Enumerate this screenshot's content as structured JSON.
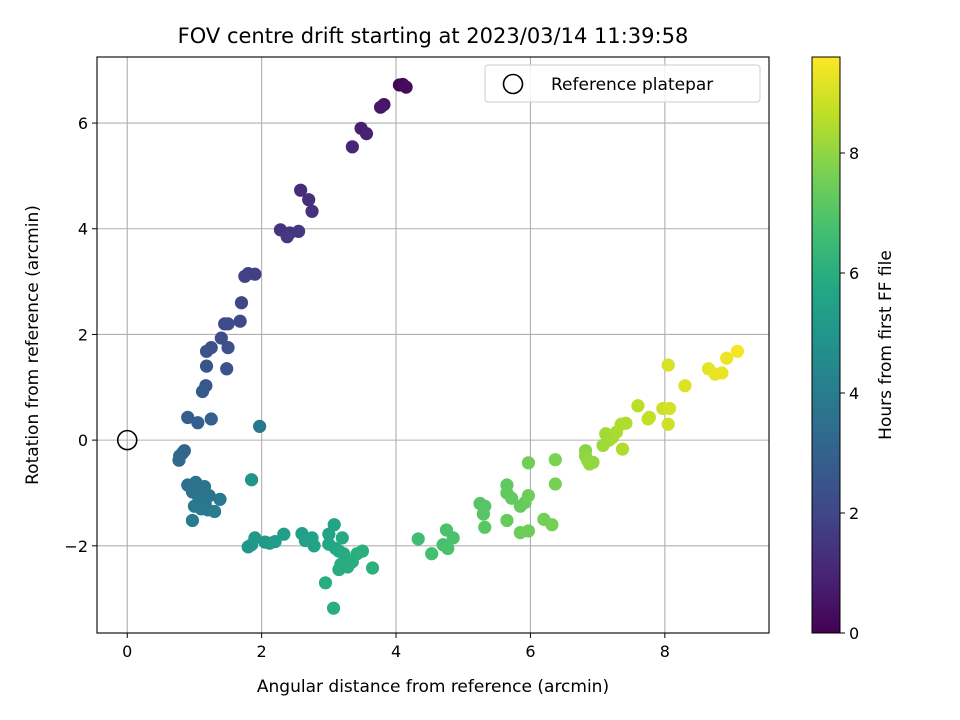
{
  "chart_data": {
    "type": "scatter",
    "title": "FOV centre drift starting at 2023/03/14 11:39:58",
    "xlabel": "Angular distance from reference (arcmin)",
    "ylabel": "Rotation from reference (arcmin)",
    "colorbar_label": "Hours from first FF file",
    "xlim": [
      -0.45,
      9.55
    ],
    "ylim": [
      -3.65,
      7.25
    ],
    "x_ticks": [
      0,
      2,
      4,
      6,
      8
    ],
    "y_ticks": [
      -2,
      0,
      2,
      4,
      6
    ],
    "x_tick_labels": [
      "0",
      "2",
      "4",
      "6",
      "8"
    ],
    "y_tick_labels": [
      "−2",
      "0",
      "2",
      "4",
      "6"
    ],
    "colorbar_range": [
      0,
      9.6
    ],
    "colorbar_ticks": [
      0,
      2,
      4,
      6,
      8
    ],
    "colorbar_tick_labels": [
      "0",
      "2",
      "4",
      "6",
      "8"
    ],
    "colormap": "viridis",
    "grid": true,
    "legend": {
      "position": "top-right",
      "entries": [
        "Reference platepar"
      ]
    },
    "reference_point": {
      "x": 0,
      "y": 0
    },
    "points": [
      {
        "x": 4.05,
        "y": 6.72,
        "t": 0.1
      },
      {
        "x": 4.1,
        "y": 6.73,
        "t": 0.2
      },
      {
        "x": 4.15,
        "y": 6.68,
        "t": 0.3
      },
      {
        "x": 3.82,
        "y": 6.35,
        "t": 0.5
      },
      {
        "x": 3.77,
        "y": 6.3,
        "t": 0.6
      },
      {
        "x": 3.48,
        "y": 5.9,
        "t": 0.8
      },
      {
        "x": 3.56,
        "y": 5.8,
        "t": 0.9
      },
      {
        "x": 3.35,
        "y": 5.55,
        "t": 1.0
      },
      {
        "x": 2.58,
        "y": 4.73,
        "t": 1.2
      },
      {
        "x": 2.7,
        "y": 4.55,
        "t": 1.3
      },
      {
        "x": 2.75,
        "y": 4.33,
        "t": 1.35
      },
      {
        "x": 2.28,
        "y": 3.98,
        "t": 1.45
      },
      {
        "x": 2.42,
        "y": 3.92,
        "t": 1.5
      },
      {
        "x": 2.38,
        "y": 3.85,
        "t": 1.55
      },
      {
        "x": 2.55,
        "y": 3.95,
        "t": 1.55
      },
      {
        "x": 1.8,
        "y": 3.15,
        "t": 1.8
      },
      {
        "x": 1.75,
        "y": 3.1,
        "t": 1.85
      },
      {
        "x": 1.9,
        "y": 3.14,
        "t": 1.8
      },
      {
        "x": 1.7,
        "y": 2.6,
        "t": 2.0
      },
      {
        "x": 1.68,
        "y": 2.25,
        "t": 2.1
      },
      {
        "x": 1.45,
        "y": 2.2,
        "t": 2.15
      },
      {
        "x": 1.5,
        "y": 2.2,
        "t": 2.2
      },
      {
        "x": 1.4,
        "y": 1.93,
        "t": 2.3
      },
      {
        "x": 1.25,
        "y": 1.75,
        "t": 2.35
      },
      {
        "x": 1.5,
        "y": 1.75,
        "t": 2.35
      },
      {
        "x": 1.18,
        "y": 1.68,
        "t": 2.4
      },
      {
        "x": 1.18,
        "y": 1.4,
        "t": 2.5
      },
      {
        "x": 1.48,
        "y": 1.35,
        "t": 2.5
      },
      {
        "x": 1.17,
        "y": 1.03,
        "t": 2.6
      },
      {
        "x": 1.12,
        "y": 0.92,
        "t": 2.7
      },
      {
        "x": 0.9,
        "y": 0.43,
        "t": 2.85
      },
      {
        "x": 1.05,
        "y": 0.33,
        "t": 2.9
      },
      {
        "x": 1.25,
        "y": 0.4,
        "t": 2.9
      },
      {
        "x": 0.85,
        "y": -0.2,
        "t": 3.1
      },
      {
        "x": 0.82,
        "y": -0.25,
        "t": 3.15
      },
      {
        "x": 0.78,
        "y": -0.3,
        "t": 3.2
      },
      {
        "x": 0.77,
        "y": -0.38,
        "t": 3.25
      },
      {
        "x": 1.97,
        "y": 0.26,
        "t": 3.8
      },
      {
        "x": 0.9,
        "y": -0.85,
        "t": 3.5
      },
      {
        "x": 1.02,
        "y": -0.8,
        "t": 3.6
      },
      {
        "x": 0.97,
        "y": -0.98,
        "t": 3.65
      },
      {
        "x": 1.15,
        "y": -0.88,
        "t": 3.7
      },
      {
        "x": 1.05,
        "y": -1.05,
        "t": 3.7
      },
      {
        "x": 1.22,
        "y": -1.05,
        "t": 3.75
      },
      {
        "x": 1.38,
        "y": -1.12,
        "t": 3.8
      },
      {
        "x": 1.0,
        "y": -1.25,
        "t": 3.8
      },
      {
        "x": 1.1,
        "y": -1.3,
        "t": 3.85
      },
      {
        "x": 1.2,
        "y": -1.32,
        "t": 3.9
      },
      {
        "x": 1.3,
        "y": -1.35,
        "t": 3.95
      },
      {
        "x": 1.16,
        "y": -1.2,
        "t": 3.85
      },
      {
        "x": 0.97,
        "y": -1.52,
        "t": 4.0
      },
      {
        "x": 1.85,
        "y": -0.75,
        "t": 4.9
      },
      {
        "x": 1.8,
        "y": -2.02,
        "t": 5.0
      },
      {
        "x": 1.85,
        "y": -1.98,
        "t": 5.05
      },
      {
        "x": 1.9,
        "y": -1.85,
        "t": 5.1
      },
      {
        "x": 2.05,
        "y": -1.93,
        "t": 5.15
      },
      {
        "x": 2.12,
        "y": -1.95,
        "t": 5.2
      },
      {
        "x": 2.2,
        "y": -1.92,
        "t": 5.25
      },
      {
        "x": 2.33,
        "y": -1.78,
        "t": 5.3
      },
      {
        "x": 2.6,
        "y": -1.77,
        "t": 5.4
      },
      {
        "x": 2.65,
        "y": -1.9,
        "t": 5.45
      },
      {
        "x": 2.75,
        "y": -1.85,
        "t": 5.5
      },
      {
        "x": 2.78,
        "y": -2.0,
        "t": 5.55
      },
      {
        "x": 3.0,
        "y": -1.78,
        "t": 5.6
      },
      {
        "x": 3.08,
        "y": -1.6,
        "t": 5.65
      },
      {
        "x": 3.0,
        "y": -1.97,
        "t": 5.7
      },
      {
        "x": 3.1,
        "y": -2.05,
        "t": 5.75
      },
      {
        "x": 3.15,
        "y": -2.1,
        "t": 5.8
      },
      {
        "x": 3.2,
        "y": -1.85,
        "t": 5.85
      },
      {
        "x": 3.22,
        "y": -2.15,
        "t": 5.85
      },
      {
        "x": 3.25,
        "y": -2.25,
        "t": 5.9
      },
      {
        "x": 3.18,
        "y": -2.35,
        "t": 5.9
      },
      {
        "x": 3.15,
        "y": -2.45,
        "t": 5.95
      },
      {
        "x": 3.28,
        "y": -2.4,
        "t": 5.95
      },
      {
        "x": 3.35,
        "y": -2.3,
        "t": 6.0
      },
      {
        "x": 3.42,
        "y": -2.15,
        "t": 6.0
      },
      {
        "x": 3.5,
        "y": -2.1,
        "t": 6.05
      },
      {
        "x": 3.65,
        "y": -2.42,
        "t": 6.1
      },
      {
        "x": 2.95,
        "y": -2.7,
        "t": 5.95
      },
      {
        "x": 3.07,
        "y": -3.18,
        "t": 6.0
      },
      {
        "x": 4.33,
        "y": -1.87,
        "t": 6.6
      },
      {
        "x": 4.53,
        "y": -2.15,
        "t": 6.7
      },
      {
        "x": 4.7,
        "y": -1.98,
        "t": 6.75
      },
      {
        "x": 4.77,
        "y": -2.05,
        "t": 6.8
      },
      {
        "x": 4.75,
        "y": -1.7,
        "t": 6.8
      },
      {
        "x": 4.85,
        "y": -1.85,
        "t": 6.85
      },
      {
        "x": 5.25,
        "y": -1.2,
        "t": 7.0
      },
      {
        "x": 5.32,
        "y": -1.25,
        "t": 7.05
      },
      {
        "x": 5.3,
        "y": -1.4,
        "t": 7.05
      },
      {
        "x": 5.32,
        "y": -1.65,
        "t": 7.1
      },
      {
        "x": 5.65,
        "y": -0.85,
        "t": 7.2
      },
      {
        "x": 5.65,
        "y": -1.0,
        "t": 7.25
      },
      {
        "x": 5.72,
        "y": -1.1,
        "t": 7.3
      },
      {
        "x": 5.85,
        "y": -1.25,
        "t": 7.3
      },
      {
        "x": 5.92,
        "y": -1.18,
        "t": 7.35
      },
      {
        "x": 5.65,
        "y": -1.52,
        "t": 7.35
      },
      {
        "x": 5.85,
        "y": -1.75,
        "t": 7.4
      },
      {
        "x": 5.97,
        "y": -1.72,
        "t": 7.45
      },
      {
        "x": 5.97,
        "y": -1.05,
        "t": 7.45
      },
      {
        "x": 5.97,
        "y": -0.43,
        "t": 7.5
      },
      {
        "x": 6.2,
        "y": -1.5,
        "t": 7.55
      },
      {
        "x": 6.32,
        "y": -1.6,
        "t": 7.6
      },
      {
        "x": 6.37,
        "y": -0.83,
        "t": 7.65
      },
      {
        "x": 6.37,
        "y": -0.37,
        "t": 7.7
      },
      {
        "x": 6.82,
        "y": -0.2,
        "t": 7.9
      },
      {
        "x": 6.82,
        "y": -0.3,
        "t": 7.95
      },
      {
        "x": 6.85,
        "y": -0.38,
        "t": 8.0
      },
      {
        "x": 6.88,
        "y": -0.45,
        "t": 8.05
      },
      {
        "x": 6.93,
        "y": -0.42,
        "t": 8.05
      },
      {
        "x": 7.08,
        "y": -0.1,
        "t": 8.2
      },
      {
        "x": 7.12,
        "y": 0.12,
        "t": 8.25
      },
      {
        "x": 7.17,
        "y": 0.0,
        "t": 8.25
      },
      {
        "x": 7.22,
        "y": 0.05,
        "t": 8.3
      },
      {
        "x": 7.28,
        "y": 0.15,
        "t": 8.35
      },
      {
        "x": 7.35,
        "y": 0.3,
        "t": 8.4
      },
      {
        "x": 7.42,
        "y": 0.32,
        "t": 8.45
      },
      {
        "x": 7.37,
        "y": -0.17,
        "t": 8.45
      },
      {
        "x": 7.6,
        "y": 0.65,
        "t": 8.6
      },
      {
        "x": 7.75,
        "y": 0.4,
        "t": 8.7
      },
      {
        "x": 7.77,
        "y": 0.43,
        "t": 8.7
      },
      {
        "x": 7.97,
        "y": 0.6,
        "t": 8.85
      },
      {
        "x": 8.05,
        "y": 0.3,
        "t": 8.9
      },
      {
        "x": 8.07,
        "y": 0.6,
        "t": 8.95
      },
      {
        "x": 8.05,
        "y": 1.42,
        "t": 9.0
      },
      {
        "x": 8.3,
        "y": 1.03,
        "t": 9.1
      },
      {
        "x": 8.65,
        "y": 1.35,
        "t": 9.2
      },
      {
        "x": 8.75,
        "y": 1.25,
        "t": 9.25
      },
      {
        "x": 8.85,
        "y": 1.27,
        "t": 9.3
      },
      {
        "x": 8.92,
        "y": 1.55,
        "t": 9.35
      },
      {
        "x": 9.08,
        "y": 1.68,
        "t": 9.45
      }
    ]
  }
}
